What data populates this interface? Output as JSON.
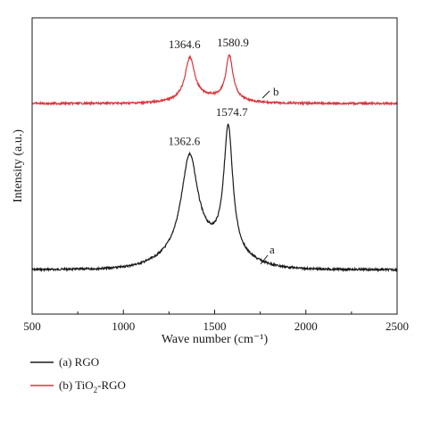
{
  "chart_data": {
    "type": "line",
    "xlabel": "Wave number (cm⁻¹)",
    "ylabel": "Intensity (a.u.)",
    "xlim": [
      500,
      2500
    ],
    "xticks": [
      500,
      1000,
      1500,
      2000,
      2500
    ],
    "yticks_shown": false,
    "grid": false,
    "legend_placement": "bottom-left, below plot",
    "series": [
      {
        "name": "(a) RGO",
        "legend_label": "(a) RGO",
        "curve_label": "a",
        "color": "#1a1a1a",
        "baseline": 0.05,
        "peaks": [
          {
            "center": 1362.6,
            "height": 0.65,
            "width": 55,
            "label": "1362.6"
          },
          {
            "center": 1574.7,
            "height": 0.83,
            "width": 30,
            "label": "1574.7"
          }
        ],
        "broad_background": {
          "center": 1450,
          "height": 0.12,
          "width": 260
        }
      },
      {
        "name": "(b) TiO2-RGO",
        "legend_label_parts": [
          "(b) TiO",
          "2",
          "-RGO"
        ],
        "curve_label": "b",
        "color": "#d9363e",
        "baseline": 0.0,
        "peaks": [
          {
            "center": 1364.6,
            "height": 0.25,
            "width": 32,
            "label": "1364.6"
          },
          {
            "center": 1580.9,
            "height": 0.26,
            "width": 24,
            "label": "1580.9"
          }
        ],
        "broad_background": {
          "center": 1470,
          "height": 0.03,
          "width": 200
        }
      }
    ]
  }
}
